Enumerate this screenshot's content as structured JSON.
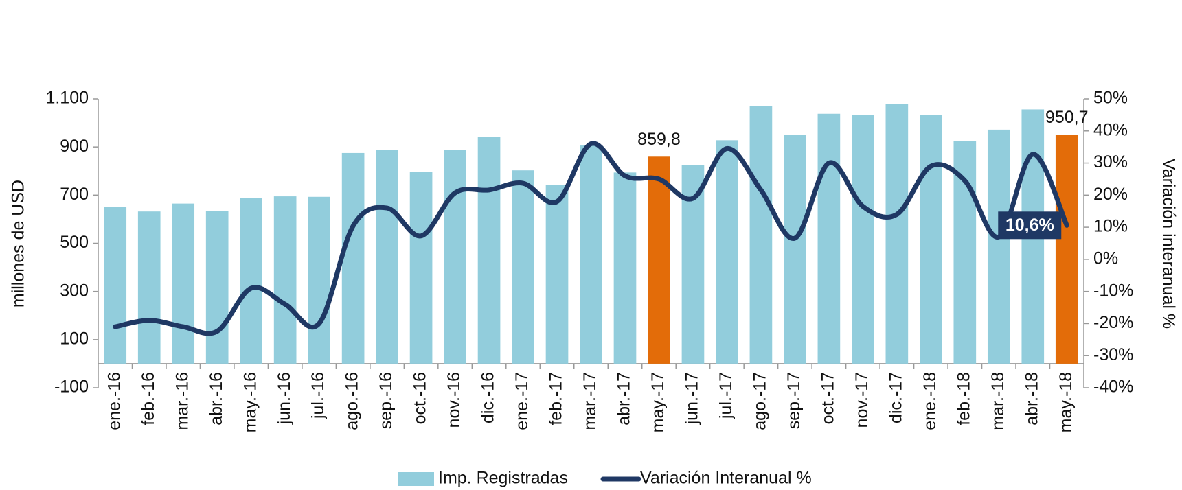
{
  "chart_data": {
    "type": "bar-line",
    "categories": [
      "ene.-16",
      "feb.-16",
      "mar.-16",
      "abr.-16",
      "may.-16",
      "jun.-16",
      "jul.-16",
      "ago.-16",
      "sep.-16",
      "oct.-16",
      "nov.-16",
      "dic.-16",
      "ene.-17",
      "feb.-17",
      "mar.-17",
      "abr.-17",
      "may.-17",
      "jun.-17",
      "jul.-17",
      "ago.-17",
      "sep.-17",
      "oct.-17",
      "nov.-17",
      "dic.-17",
      "ene.-18",
      "feb.-18",
      "mar.-18",
      "abr.-18",
      "may.-18"
    ],
    "y_label": "millones de USD",
    "y2_label": "Variación interanual %",
    "ylim": [
      -100,
      1100
    ],
    "yticks": [
      -100,
      100,
      300,
      500,
      700,
      {
        "value": 900,
        "label": "900"
      },
      {
        "value": 1100,
        "label": "1.100"
      }
    ],
    "y2lim": [
      -40,
      50
    ],
    "y2ticks": [
      {
        "value": -40,
        "label": "-40%"
      },
      {
        "value": -30,
        "label": "-30%"
      },
      {
        "value": -20,
        "label": "-20%"
      },
      {
        "value": -10,
        "label": "-10%"
      },
      {
        "value": 0,
        "label": "0%"
      },
      {
        "value": 10,
        "label": "10%"
      },
      {
        "value": 20,
        "label": "20%"
      },
      {
        "value": 30,
        "label": "30%"
      },
      {
        "value": 40,
        "label": "40%"
      },
      {
        "value": 50,
        "label": "50%"
      }
    ],
    "series": [
      {
        "name": "Imp. Registradas",
        "type": "bar",
        "color": "#92cddc",
        "colors": [
          "#92cddc",
          "#92cddc",
          "#92cddc",
          "#92cddc",
          "#92cddc",
          "#92cddc",
          "#92cddc",
          "#92cddc",
          "#92cddc",
          "#92cddc",
          "#92cddc",
          "#92cddc",
          "#92cddc",
          "#92cddc",
          "#92cddc",
          "#92cddc",
          "#e36c09",
          "#92cddc",
          "#92cddc",
          "#92cddc",
          "#92cddc",
          "#92cddc",
          "#92cddc",
          "#92cddc",
          "#92cddc",
          "#92cddc",
          "#92cddc",
          "#92cddc",
          "#e36c09"
        ],
        "values": [
          650,
          632,
          665,
          635,
          688,
          695,
          693,
          875,
          888,
          797,
          888,
          941,
          803,
          741,
          906,
          794,
          859.8,
          825,
          928,
          1069,
          950,
          1038,
          1034,
          1078,
          1034,
          925,
          972,
          1056,
          950.7
        ],
        "value_labels": [
          null,
          null,
          null,
          null,
          null,
          null,
          null,
          null,
          null,
          null,
          null,
          null,
          null,
          null,
          null,
          null,
          "859,8",
          null,
          null,
          null,
          null,
          null,
          null,
          null,
          null,
          null,
          null,
          null,
          "950,7"
        ]
      },
      {
        "name": "Variación Interanual %",
        "type": "line",
        "axis": "y2",
        "color": "#1f3864",
        "values": [
          -21,
          -19,
          -21,
          -22.4,
          -9,
          -14,
          -20,
          10.4,
          16,
          7.3,
          20.7,
          21.6,
          23.7,
          18,
          36,
          26,
          25,
          19,
          34.5,
          21.6,
          6.6,
          30,
          16.5,
          14,
          29,
          24.5,
          7,
          32.7,
          10.6
        ],
        "value_labels": [
          null,
          null,
          null,
          null,
          null,
          null,
          null,
          null,
          null,
          null,
          null,
          null,
          null,
          null,
          null,
          null,
          null,
          null,
          null,
          null,
          null,
          null,
          null,
          null,
          null,
          null,
          null,
          null,
          "10,6%"
        ]
      }
    ]
  }
}
